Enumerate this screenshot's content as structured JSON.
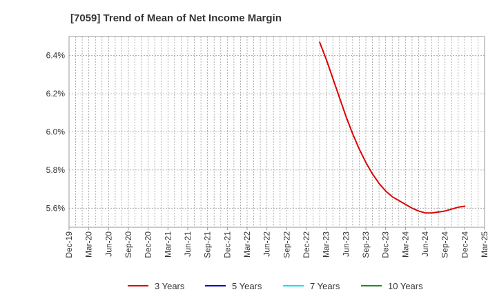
{
  "chart_data": {
    "type": "line",
    "title": "[7059]  Trend of Mean of Net Income Margin",
    "xlabel": "",
    "ylabel": "",
    "x_ticks": [
      "Dec-19",
      "Mar-20",
      "Jun-20",
      "Sep-20",
      "Dec-20",
      "Mar-21",
      "Jun-21",
      "Sep-21",
      "Dec-21",
      "Mar-22",
      "Jun-22",
      "Sep-22",
      "Dec-22",
      "Mar-23",
      "Jun-23",
      "Sep-23",
      "Dec-23",
      "Mar-24",
      "Jun-24",
      "Sep-24",
      "Dec-24",
      "Mar-25"
    ],
    "y_ticks": [
      "5.6%",
      "5.8%",
      "6.0%",
      "6.2%",
      "6.4%"
    ],
    "y_tick_values": [
      5.6,
      5.8,
      6.0,
      6.2,
      6.4
    ],
    "ylim": [
      5.5,
      6.5
    ],
    "grid": true,
    "legend_position": "bottom",
    "series": [
      {
        "name": "3 Years",
        "color": "#dd0000",
        "x": [
          "Feb-23",
          "Mar-23",
          "Apr-23",
          "May-23",
          "Jun-23",
          "Jul-23",
          "Aug-23",
          "Sep-23",
          "Oct-23",
          "Nov-23",
          "Dec-23",
          "Jan-24",
          "Feb-24",
          "Mar-24",
          "Apr-24",
          "May-24",
          "Jun-24",
          "Jul-24",
          "Aug-24",
          "Sep-24",
          "Oct-24",
          "Nov-24",
          "Dec-24"
        ],
        "values": [
          6.47,
          6.38,
          6.28,
          6.18,
          6.08,
          5.99,
          5.91,
          5.84,
          5.78,
          5.73,
          5.69,
          5.66,
          5.64,
          5.62,
          5.6,
          5.585,
          5.575,
          5.575,
          5.58,
          5.585,
          5.595,
          5.605,
          5.61
        ]
      },
      {
        "name": "5 Years",
        "color": "#0000cc",
        "x": [],
        "values": []
      },
      {
        "name": "7 Years",
        "color": "#00e5ee",
        "x": [],
        "values": []
      },
      {
        "name": "10 Years",
        "color": "#228b22",
        "x": [],
        "values": []
      }
    ]
  }
}
